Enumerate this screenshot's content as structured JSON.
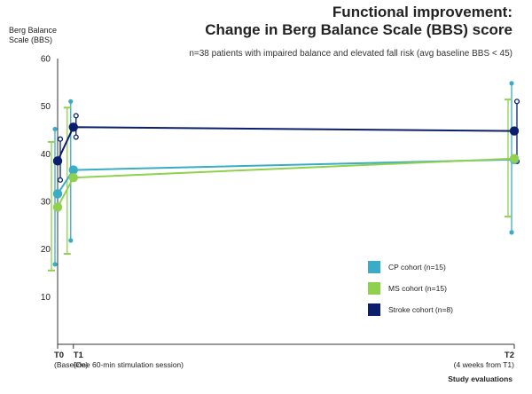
{
  "title": {
    "line1": "Functional improvement:",
    "line2": "Change in Berg Balance Scale (BBS) score"
  },
  "subtitle": "n=38 patients with impaired balance and elevated fall risk (avg baseline BBS < 45)",
  "ylabel": {
    "line1": "Berg Balance",
    "line2": "Scale (BBS)"
  },
  "xlabel": "Study evaluations",
  "timepoints": [
    {
      "label": "T0",
      "sub": "(Baseline)"
    },
    {
      "label": "T1",
      "sub": "(One 60-min stimulation session)"
    },
    {
      "label": "T2",
      "sub": "(4 weeks from T1)"
    }
  ],
  "chart_data": {
    "type": "line",
    "x": [
      "T0",
      "T1",
      "T2"
    ],
    "x_values_days": [
      0,
      1,
      29
    ],
    "ylim": [
      0,
      60
    ],
    "yticks": [
      10,
      20,
      30,
      40,
      50,
      60
    ],
    "grid": false,
    "legend_position": "bottom-right",
    "series": [
      {
        "name": "CP cohort (n=15)",
        "color": "#3aacc6",
        "values": [
          31.6,
          36.6,
          38.8
        ],
        "error_low": [
          16.8,
          21.8,
          23.5
        ],
        "error_high": [
          45.2,
          51.0,
          54.8
        ]
      },
      {
        "name": "MS cohort (n=15)",
        "color": "#8fd14f",
        "values": [
          28.8,
          35.0,
          39.0
        ],
        "error_low": [
          15.5,
          19.0,
          26.8
        ],
        "error_high": [
          42.5,
          49.7,
          51.4
        ]
      },
      {
        "name": "Stroke cohort (n=8)",
        "color": "#0c1f6e",
        "values": [
          38.5,
          45.6,
          44.8
        ],
        "error_low": [
          34.5,
          43.5,
          38.4
        ],
        "error_high": [
          43.1,
          48.0,
          51.0
        ]
      }
    ]
  }
}
